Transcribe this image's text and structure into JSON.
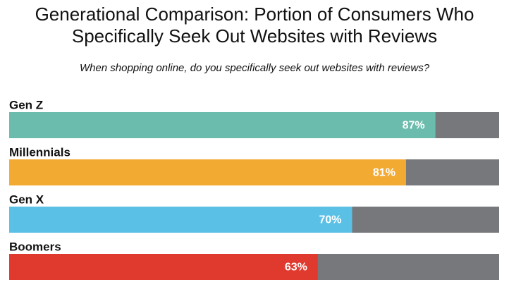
{
  "chart_data": {
    "type": "bar",
    "orientation": "horizontal",
    "title": "Generational Comparison: Portion of Consumers Who Specifically Seek Out Websites with Reviews",
    "subtitle": "When shopping online, do you specifically seek out websites with reviews?",
    "categories": [
      "Gen Z",
      "Millennials",
      "Gen X",
      "Boomers"
    ],
    "values": [
      87,
      81,
      70,
      63
    ],
    "value_labels": [
      "87%",
      "81%",
      "70%",
      "63%"
    ],
    "colors": [
      "#6bbcad",
      "#f2aa33",
      "#5bc0e6",
      "#e03a2f"
    ],
    "track_color": "#76787b",
    "xlim": [
      0,
      100
    ]
  }
}
